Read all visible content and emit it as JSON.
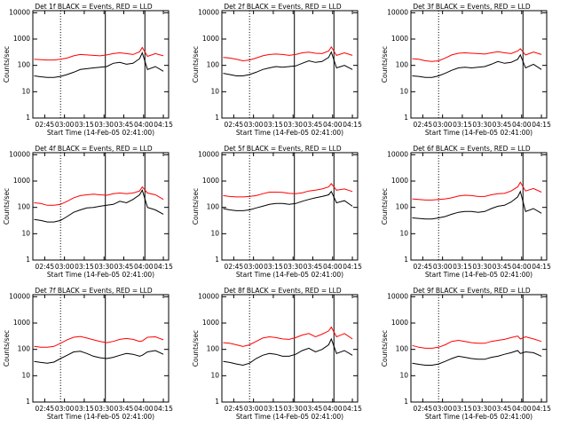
{
  "chart_data": [
    {
      "type": "line",
      "title": "Det 1f BLACK = Events, RED = LLD",
      "xlabel": "Start Time (14-Feb-05 02:41:00)",
      "ylabel": "Counts/sec",
      "x": [
        "02:37",
        "02:42",
        "02:47",
        "02:52",
        "02:57",
        "03:02",
        "03:07",
        "03:12",
        "03:17",
        "03:22",
        "03:27",
        "03:32",
        "03:37",
        "03:42",
        "03:47",
        "03:52",
        "03:57",
        "03:59",
        "04:03",
        "04:09",
        "04:15"
      ],
      "xlim": [
        "02:36",
        "04:19"
      ],
      "xticks": [
        "02:45",
        "03:00",
        "03:15",
        "03:30",
        "03:45",
        "04:00",
        "04:15"
      ],
      "ylim": [
        1,
        12000
      ],
      "yticks": [
        1,
        10,
        100,
        1000,
        10000
      ],
      "log_y": true,
      "series": [
        {
          "color": "#ff0000",
          "values": [
            170,
            165,
            160,
            160,
            170,
            190,
            230,
            260,
            250,
            240,
            230,
            250,
            280,
            300,
            280,
            260,
            330,
            480,
            220,
            280,
            230
          ]
        },
        {
          "color": "#000000",
          "values": [
            40,
            37,
            35,
            35,
            38,
            45,
            55,
            70,
            75,
            80,
            85,
            90,
            120,
            130,
            110,
            120,
            180,
            300,
            70,
            90,
            60
          ]
        }
      ],
      "vlines": [
        {
          "x": "02:57",
          "style": "dotted"
        },
        {
          "x": "03:31",
          "style": "solid"
        },
        {
          "x": "04:01",
          "style": "solid"
        }
      ]
    },
    {
      "type": "line",
      "title": "Det 2f BLACK = Events, RED = LLD",
      "xlabel": "Start Time (14-Feb-05 02:41:00)",
      "ylabel": "Counts/sec",
      "x": [
        "02:37",
        "02:42",
        "02:47",
        "02:52",
        "02:57",
        "03:02",
        "03:07",
        "03:12",
        "03:17",
        "03:22",
        "03:27",
        "03:32",
        "03:37",
        "03:42",
        "03:47",
        "03:52",
        "03:57",
        "03:59",
        "04:03",
        "04:09",
        "04:15"
      ],
      "xlim": [
        "02:36",
        "04:19"
      ],
      "xticks": [
        "02:45",
        "03:00",
        "03:15",
        "03:30",
        "03:45",
        "04:00",
        "04:15"
      ],
      "ylim": [
        1,
        12000
      ],
      "yticks": [
        1,
        10,
        100,
        1000,
        10000
      ],
      "log_y": true,
      "series": [
        {
          "color": "#ff0000",
          "values": [
            200,
            190,
            170,
            150,
            160,
            190,
            230,
            260,
            270,
            260,
            240,
            260,
            300,
            320,
            290,
            280,
            350,
            500,
            240,
            300,
            240
          ]
        },
        {
          "color": "#000000",
          "values": [
            50,
            45,
            40,
            40,
            45,
            55,
            70,
            80,
            90,
            85,
            90,
            95,
            120,
            150,
            130,
            140,
            200,
            320,
            80,
            100,
            70
          ]
        }
      ],
      "vlines": [
        {
          "x": "02:57",
          "style": "dotted"
        },
        {
          "x": "03:31",
          "style": "solid"
        },
        {
          "x": "04:01",
          "style": "solid"
        }
      ]
    },
    {
      "type": "line",
      "title": "Det 3f BLACK = Events, RED = LLD",
      "xlabel": "Start Time (14-Feb-05 02:41:00)",
      "ylabel": "Counts/sec",
      "x": [
        "02:37",
        "02:42",
        "02:47",
        "02:52",
        "02:57",
        "03:02",
        "03:07",
        "03:12",
        "03:17",
        "03:22",
        "03:27",
        "03:32",
        "03:37",
        "03:42",
        "03:47",
        "03:52",
        "03:57",
        "03:59",
        "04:03",
        "04:09",
        "04:15"
      ],
      "xlim": [
        "02:36",
        "04:19"
      ],
      "xticks": [
        "02:45",
        "03:00",
        "03:15",
        "03:30",
        "03:45",
        "04:00",
        "04:15"
      ],
      "ylim": [
        1,
        12000
      ],
      "yticks": [
        1,
        10,
        100,
        1000,
        10000
      ],
      "log_y": true,
      "series": [
        {
          "color": "#ff0000",
          "values": [
            180,
            170,
            150,
            140,
            150,
            190,
            250,
            290,
            300,
            290,
            280,
            270,
            300,
            330,
            300,
            280,
            350,
            430,
            250,
            320,
            260
          ]
        },
        {
          "color": "#000000",
          "values": [
            40,
            38,
            35,
            35,
            40,
            50,
            65,
            80,
            85,
            80,
            85,
            90,
            110,
            140,
            120,
            130,
            170,
            250,
            80,
            110,
            70
          ]
        }
      ],
      "vlines": [
        {
          "x": "02:57",
          "style": "dotted"
        },
        {
          "x": "04:01",
          "style": "solid"
        }
      ]
    },
    {
      "type": "line",
      "title": "Det 4f BLACK = Events, RED = LLD",
      "xlabel": "Start Time (14-Feb-05 02:41:00)",
      "ylabel": "Counts/sec",
      "x": [
        "02:37",
        "02:42",
        "02:47",
        "02:52",
        "02:57",
        "03:02",
        "03:07",
        "03:12",
        "03:17",
        "03:22",
        "03:27",
        "03:32",
        "03:37",
        "03:42",
        "03:47",
        "03:52",
        "03:57",
        "03:59",
        "04:03",
        "04:09",
        "04:15"
      ],
      "xlim": [
        "02:36",
        "04:19"
      ],
      "xticks": [
        "02:45",
        "03:00",
        "03:15",
        "03:30",
        "03:45",
        "04:00",
        "04:15"
      ],
      "ylim": [
        1,
        12000
      ],
      "yticks": [
        1,
        10,
        100,
        1000,
        10000
      ],
      "log_y": true,
      "series": [
        {
          "color": "#ff0000",
          "values": [
            150,
            140,
            120,
            120,
            130,
            170,
            230,
            280,
            300,
            320,
            300,
            290,
            330,
            350,
            330,
            350,
            420,
            600,
            350,
            300,
            200
          ]
        },
        {
          "color": "#000000",
          "values": [
            35,
            32,
            28,
            28,
            32,
            45,
            65,
            80,
            95,
            100,
            110,
            120,
            130,
            170,
            150,
            200,
            300,
            450,
            100,
            80,
            55
          ]
        }
      ],
      "vlines": [
        {
          "x": "02:57",
          "style": "dotted"
        },
        {
          "x": "03:31",
          "style": "solid"
        },
        {
          "x": "04:01",
          "style": "solid"
        }
      ]
    },
    {
      "type": "line",
      "title": "Det 5f BLACK = Events, RED = LLD",
      "xlabel": "Start Time (14-Feb-05 02:41:00)",
      "ylabel": "Counts/sec",
      "x": [
        "02:37",
        "02:42",
        "02:47",
        "02:52",
        "02:57",
        "03:02",
        "03:07",
        "03:12",
        "03:17",
        "03:22",
        "03:27",
        "03:32",
        "03:37",
        "03:42",
        "03:47",
        "03:52",
        "03:57",
        "03:59",
        "04:03",
        "04:09",
        "04:15"
      ],
      "xlim": [
        "02:36",
        "04:19"
      ],
      "xticks": [
        "02:45",
        "03:00",
        "03:15",
        "03:30",
        "03:45",
        "04:00",
        "04:15"
      ],
      "ylim": [
        1,
        12000
      ],
      "yticks": [
        1,
        10,
        100,
        1000,
        10000
      ],
      "log_y": true,
      "series": [
        {
          "color": "#ff0000",
          "values": [
            280,
            260,
            250,
            250,
            260,
            280,
            330,
            380,
            380,
            370,
            340,
            330,
            360,
            420,
            450,
            500,
            600,
            800,
            450,
            500,
            400
          ]
        },
        {
          "color": "#000000",
          "values": [
            90,
            80,
            75,
            75,
            80,
            95,
            110,
            130,
            140,
            140,
            130,
            140,
            170,
            200,
            230,
            260,
            300,
            400,
            150,
            180,
            110
          ]
        }
      ],
      "vlines": [
        {
          "x": "02:57",
          "style": "dotted"
        },
        {
          "x": "03:31",
          "style": "solid"
        },
        {
          "x": "04:01",
          "style": "solid"
        }
      ]
    },
    {
      "type": "line",
      "title": "Det 6f BLACK = Events, RED = LLD",
      "xlabel": "Start Time (14-Feb-05 02:41:00)",
      "ylabel": "Counts/sec",
      "x": [
        "02:37",
        "02:42",
        "02:47",
        "02:52",
        "02:57",
        "03:02",
        "03:07",
        "03:12",
        "03:17",
        "03:22",
        "03:27",
        "03:32",
        "03:37",
        "03:42",
        "03:47",
        "03:52",
        "03:57",
        "03:59",
        "04:03",
        "04:09",
        "04:15"
      ],
      "xlim": [
        "02:36",
        "04:19"
      ],
      "xticks": [
        "02:45",
        "03:00",
        "03:15",
        "03:30",
        "03:45",
        "04:00",
        "04:15"
      ],
      "ylim": [
        1,
        12000
      ],
      "yticks": [
        1,
        10,
        100,
        1000,
        10000
      ],
      "log_y": true,
      "series": [
        {
          "color": "#ff0000",
          "values": [
            210,
            200,
            190,
            190,
            200,
            210,
            230,
            270,
            290,
            280,
            260,
            260,
            300,
            330,
            340,
            420,
            600,
            900,
            420,
            520,
            380
          ]
        },
        {
          "color": "#000000",
          "values": [
            40,
            38,
            36,
            36,
            40,
            45,
            55,
            65,
            70,
            70,
            65,
            70,
            90,
            110,
            120,
            160,
            250,
            400,
            70,
            90,
            60
          ]
        }
      ],
      "vlines": [
        {
          "x": "02:57",
          "style": "dotted"
        },
        {
          "x": "04:01",
          "style": "solid"
        }
      ]
    },
    {
      "type": "line",
      "title": "Det 7f BLACK = Events, RED = LLD",
      "xlabel": "Start Time (14-Feb-05 02:41:00)",
      "ylabel": "Counts/sec",
      "x": [
        "02:37",
        "02:42",
        "02:47",
        "02:52",
        "02:57",
        "03:02",
        "03:07",
        "03:12",
        "03:17",
        "03:22",
        "03:27",
        "03:32",
        "03:37",
        "03:42",
        "03:47",
        "03:52",
        "03:57",
        "03:59",
        "04:03",
        "04:09",
        "04:15"
      ],
      "xlim": [
        "02:36",
        "04:19"
      ],
      "xticks": [
        "02:45",
        "03:00",
        "03:15",
        "03:30",
        "03:45",
        "04:00",
        "04:15"
      ],
      "ylim": [
        1,
        12000
      ],
      "yticks": [
        1,
        10,
        100,
        1000,
        10000
      ],
      "log_y": true,
      "series": [
        {
          "color": "#ff0000",
          "values": [
            130,
            120,
            120,
            130,
            170,
            230,
            290,
            310,
            270,
            230,
            200,
            180,
            200,
            240,
            260,
            240,
            200,
            210,
            290,
            300,
            230
          ]
        },
        {
          "color": "#000000",
          "values": [
            35,
            32,
            30,
            33,
            45,
            60,
            80,
            85,
            70,
            55,
            48,
            45,
            50,
            60,
            70,
            65,
            55,
            60,
            80,
            90,
            65
          ]
        }
      ],
      "vlines": [
        {
          "x": "02:57",
          "style": "dotted"
        },
        {
          "x": "03:31",
          "style": "solid"
        }
      ]
    },
    {
      "type": "line",
      "title": "Det 8f BLACK = Events, RED = LLD",
      "xlabel": "Start Time (14-Feb-05 02:41:00)",
      "ylabel": "Counts/sec",
      "x": [
        "02:37",
        "02:42",
        "02:47",
        "02:52",
        "02:57",
        "03:02",
        "03:07",
        "03:12",
        "03:17",
        "03:22",
        "03:27",
        "03:32",
        "03:37",
        "03:42",
        "03:47",
        "03:52",
        "03:57",
        "03:59",
        "04:03",
        "04:09",
        "04:15"
      ],
      "xlim": [
        "02:36",
        "04:19"
      ],
      "xticks": [
        "02:45",
        "03:00",
        "03:15",
        "03:30",
        "03:45",
        "04:00",
        "04:15"
      ],
      "ylim": [
        1,
        12000
      ],
      "yticks": [
        1,
        10,
        100,
        1000,
        10000
      ],
      "log_y": true,
      "series": [
        {
          "color": "#ff0000",
          "values": [
            180,
            170,
            150,
            130,
            150,
            200,
            270,
            300,
            280,
            250,
            240,
            280,
            350,
            400,
            300,
            380,
            500,
            700,
            300,
            400,
            250
          ]
        },
        {
          "color": "#000000",
          "values": [
            35,
            32,
            28,
            25,
            30,
            45,
            60,
            70,
            65,
            55,
            55,
            65,
            90,
            110,
            80,
            100,
            150,
            250,
            70,
            90,
            60
          ]
        }
      ],
      "vlines": [
        {
          "x": "02:57",
          "style": "dotted"
        },
        {
          "x": "03:31",
          "style": "solid"
        },
        {
          "x": "04:01",
          "style": "solid"
        }
      ]
    },
    {
      "type": "line",
      "title": "Det 9f BLACK = Events, RED = LLD",
      "xlabel": "Start Time (14-Feb-05 02:41:00)",
      "ylabel": "Counts/sec",
      "x": [
        "02:37",
        "02:42",
        "02:47",
        "02:52",
        "02:57",
        "03:02",
        "03:07",
        "03:12",
        "03:17",
        "03:22",
        "03:27",
        "03:32",
        "03:37",
        "03:42",
        "03:47",
        "03:52",
        "03:57",
        "03:59",
        "04:03",
        "04:09",
        "04:15"
      ],
      "xlim": [
        "02:36",
        "04:19"
      ],
      "xticks": [
        "02:45",
        "03:00",
        "03:15",
        "03:30",
        "03:45",
        "04:00",
        "04:15"
      ],
      "ylim": [
        1,
        12000
      ],
      "yticks": [
        1,
        10,
        100,
        1000,
        10000
      ],
      "log_y": true,
      "series": [
        {
          "color": "#ff0000",
          "values": [
            140,
            120,
            110,
            110,
            120,
            150,
            200,
            220,
            200,
            180,
            170,
            170,
            200,
            220,
            240,
            280,
            320,
            250,
            300,
            250,
            200
          ]
        },
        {
          "color": "#000000",
          "values": [
            30,
            27,
            25,
            25,
            28,
            35,
            45,
            55,
            50,
            45,
            42,
            42,
            50,
            55,
            65,
            75,
            90,
            70,
            80,
            75,
            55
          ]
        }
      ],
      "vlines": [
        {
          "x": "02:57",
          "style": "dotted"
        },
        {
          "x": "04:01",
          "style": "solid"
        }
      ]
    }
  ]
}
